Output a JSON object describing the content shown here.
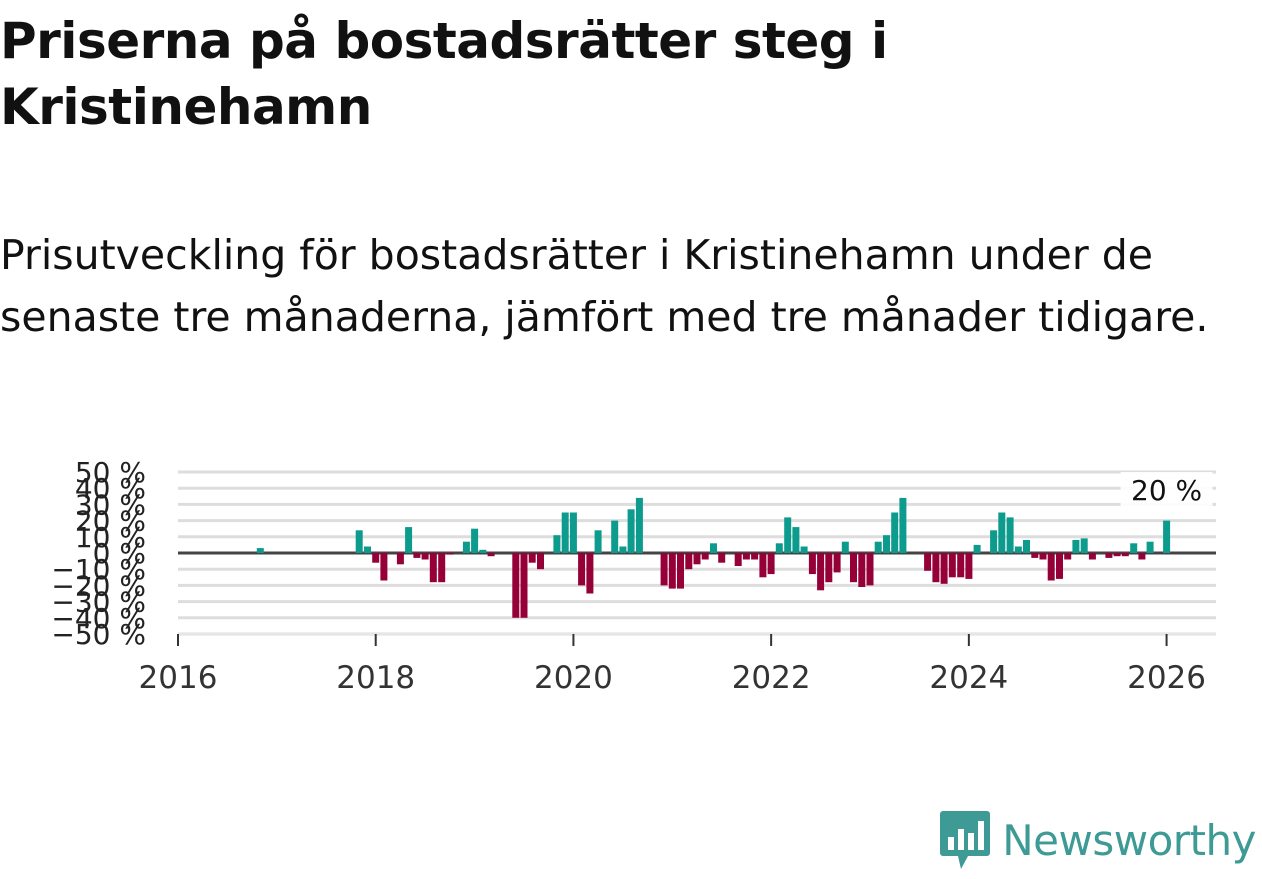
{
  "title": "Priserna på bostadsrätter steg i Kristinehamn",
  "subtitle": "Prisutveckling för bostadsrätter i Kristinehamn under de senaste tre månaderna, jämfört med tre månader tidigare.",
  "brand": {
    "name": "Newsworthy"
  },
  "colors": {
    "positive": "#0d9b8e",
    "negative": "#960038",
    "grid": "#dddddd",
    "zero_line": "#444444",
    "brand": "#3d9a95"
  },
  "chart_data": {
    "type": "bar",
    "title": "Priserna på bostadsrätter steg i Kristinehamn",
    "xlabel": "",
    "ylabel": "",
    "x_ticks": [
      "2016",
      "2018",
      "2020",
      "2022",
      "2024",
      "2026"
    ],
    "y_ticks": [
      "−50 %",
      "−40 %",
      "−30 %",
      "−20 %",
      "−10 %",
      "0 %",
      "10 %",
      "20 %",
      "30 %",
      "40 %",
      "50 %"
    ],
    "ylim": [
      -50,
      50
    ],
    "xlim": [
      2016.0,
      2026.5
    ],
    "annotation": {
      "text": "20 %",
      "x": 2026.0,
      "value": 20
    },
    "series": [
      {
        "name": "Prisutveckling",
        "x": [
          2016.833,
          2017.833,
          2017.917,
          2018.0,
          2018.083,
          2018.25,
          2018.333,
          2018.417,
          2018.5,
          2018.583,
          2018.667,
          2018.75,
          2018.917,
          2019.0,
          2019.083,
          2019.167,
          2019.417,
          2019.5,
          2019.583,
          2019.667,
          2019.833,
          2019.917,
          2020.0,
          2020.083,
          2020.167,
          2020.25,
          2020.417,
          2020.5,
          2020.583,
          2020.667,
          2020.917,
          2021.0,
          2021.083,
          2021.167,
          2021.25,
          2021.333,
          2021.417,
          2021.5,
          2021.667,
          2021.75,
          2021.833,
          2021.917,
          2022.0,
          2022.083,
          2022.167,
          2022.25,
          2022.333,
          2022.417,
          2022.5,
          2022.583,
          2022.667,
          2022.75,
          2022.833,
          2022.917,
          2023.0,
          2023.083,
          2023.167,
          2023.25,
          2023.333,
          2023.583,
          2023.667,
          2023.75,
          2023.833,
          2023.917,
          2024.0,
          2024.083,
          2024.25,
          2024.333,
          2024.417,
          2024.5,
          2024.583,
          2024.667,
          2024.75,
          2024.833,
          2024.917,
          2025.0,
          2025.083,
          2025.167,
          2025.25,
          2025.417,
          2025.5,
          2025.583,
          2025.667,
          2025.75,
          2025.833,
          2026.0
        ],
        "values": [
          3,
          14,
          4,
          -6,
          -17,
          -7,
          16,
          -3,
          -4,
          -18,
          -18,
          -1,
          7,
          15,
          2,
          -2,
          -40,
          -40,
          -6,
          -10,
          11,
          25,
          25,
          -20,
          -25,
          14,
          20,
          4,
          27,
          34,
          -20,
          -22,
          -22,
          -10,
          -7,
          -4,
          6,
          -6,
          -8,
          -4,
          -4,
          -15,
          -13,
          6,
          22,
          16,
          4,
          -13,
          -23,
          -18,
          -12,
          7,
          -18,
          -21,
          -20,
          7,
          11,
          25,
          34,
          -11,
          -18,
          -19,
          -15,
          -15,
          -16,
          5,
          14,
          25,
          22,
          4,
          8,
          -3,
          -4,
          -17,
          -16,
          -4,
          8,
          9,
          -4,
          -3,
          -2,
          -2,
          6,
          -4,
          7,
          20
        ]
      }
    ]
  }
}
